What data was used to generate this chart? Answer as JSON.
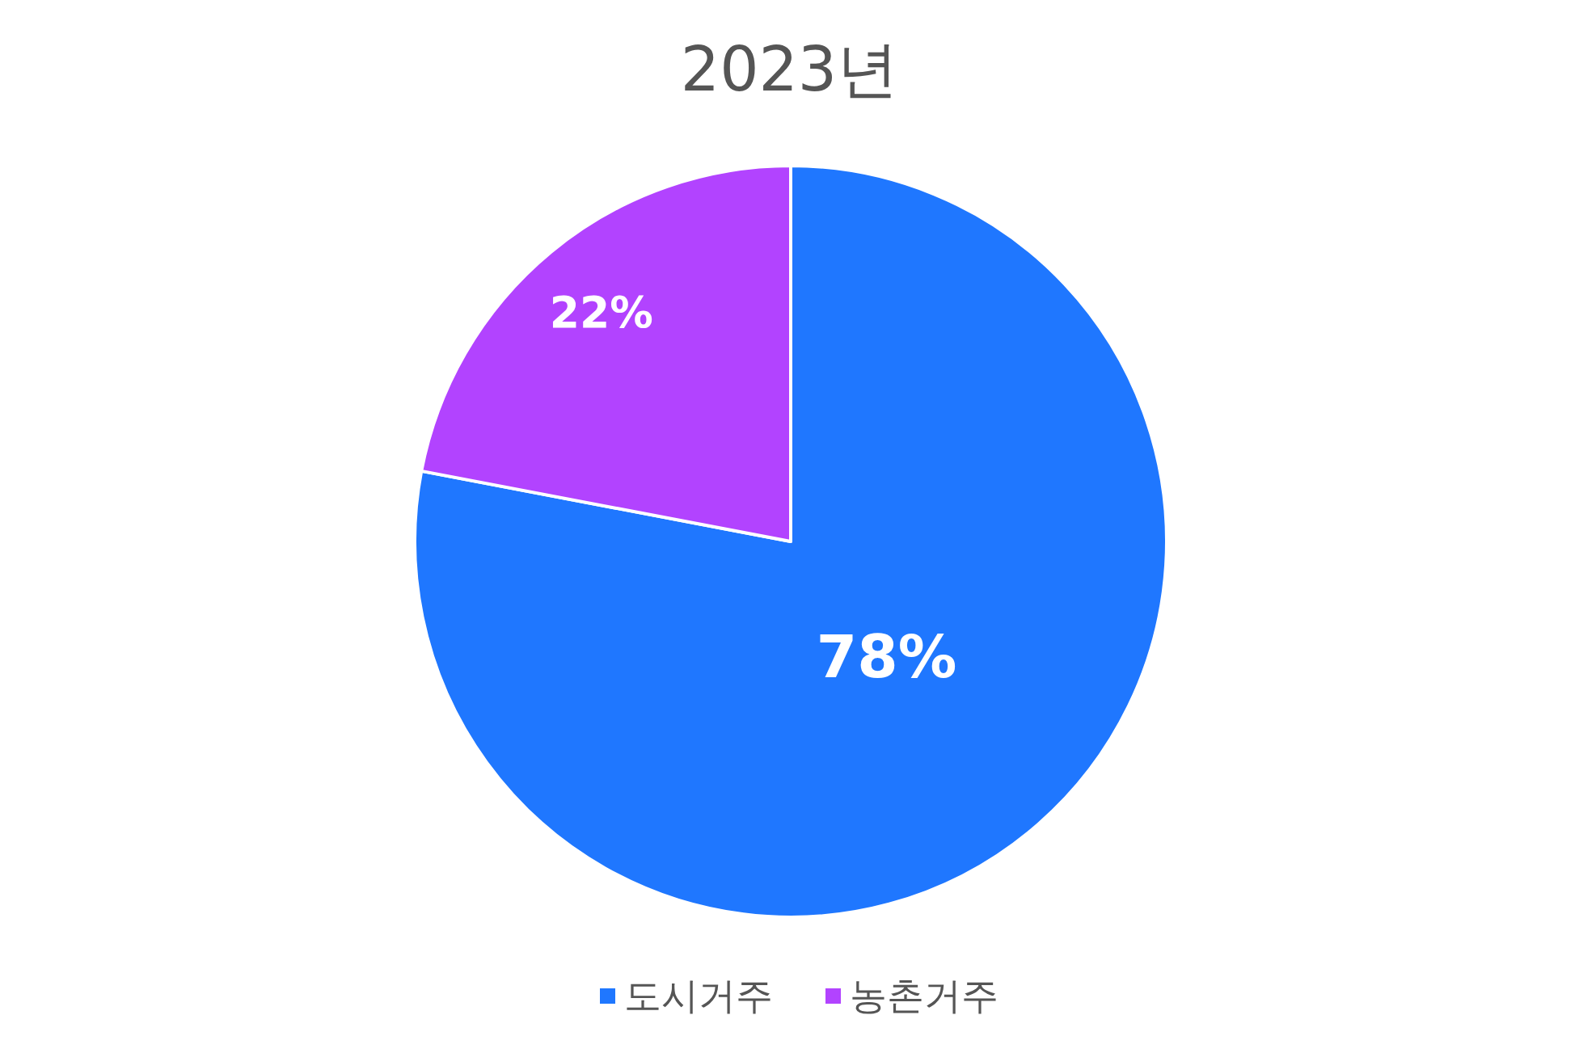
{
  "chart_data": {
    "type": "pie",
    "title": "2023년",
    "categories": [
      "도시거주",
      "농촌거주"
    ],
    "values": [
      78,
      22
    ],
    "colors": [
      "#1f77ff",
      "#b243ff"
    ],
    "value_labels": [
      "78%",
      "22%"
    ],
    "legend": "bottom"
  }
}
